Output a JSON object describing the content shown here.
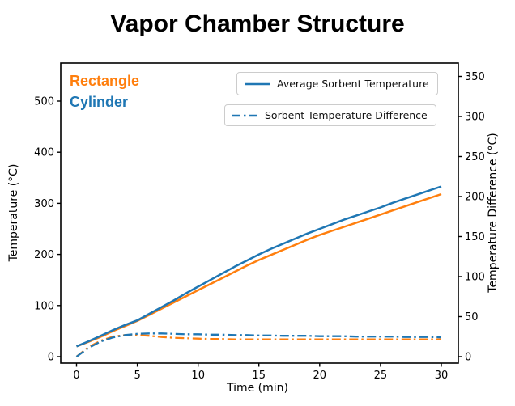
{
  "chart_data": {
    "type": "line",
    "title": "Vapor Chamber Structure",
    "xlabel": "Time (min)",
    "ylabel_left": "Temperature (°C)",
    "ylabel_right": "Temperature Difference (°C)",
    "grid": false,
    "x_ticks": [
      0,
      5,
      10,
      15,
      20,
      25,
      30
    ],
    "y_ticks_left": [
      0,
      100,
      200,
      300,
      400,
      500
    ],
    "y_ticks_right": [
      0,
      50,
      100,
      150,
      200,
      250,
      300,
      350
    ],
    "xlim": [
      -1.3,
      31.4
    ],
    "ylim_left": [
      -12.7,
      574.4
    ],
    "ylim_right": [
      -8.1,
      366.7
    ],
    "colors": {
      "cylinder": "#1f77b4",
      "rectangle": "#ff7f0e"
    },
    "annotations": [
      {
        "text": "Rectangle",
        "color": "#ff7f0e"
      },
      {
        "text": "Cylinder",
        "color": "#1f77b4"
      }
    ],
    "legend": [
      {
        "label": "Average Sorbent Temperature",
        "line_style": "solid",
        "color": "#1f77b4"
      },
      {
        "label": "Sorbent Temperature Difference",
        "line_style": "dashdot",
        "color": "#1f77b4"
      }
    ],
    "x": [
      0,
      1,
      2,
      3,
      4,
      5,
      6,
      7,
      8,
      9,
      10,
      11,
      12,
      13,
      14,
      15,
      16,
      17,
      18,
      19,
      20,
      21,
      22,
      23,
      24,
      25,
      26,
      27,
      28,
      29,
      30
    ],
    "series": [
      {
        "name": "Rectangle Average Sorbent Temperature",
        "axis": "left",
        "style": "solid",
        "color": "#ff7f0e",
        "values": [
          20,
          29,
          39,
          50,
          60,
          70,
          82,
          94,
          106,
          118,
          130,
          142,
          154,
          166,
          178,
          189,
          199,
          209,
          219,
          229,
          238,
          246,
          254,
          262,
          270,
          278,
          286,
          294,
          302,
          310,
          318
        ]
      },
      {
        "name": "Cylinder Average Sorbent Temperature",
        "axis": "left",
        "style": "solid",
        "color": "#1f77b4",
        "values": [
          20,
          30,
          41,
          52,
          62,
          71,
          84,
          97,
          110,
          124,
          137,
          150,
          163,
          176,
          188,
          200,
          211,
          221,
          231,
          241,
          250,
          259,
          268,
          276,
          284,
          292,
          301,
          309,
          317,
          325,
          333
        ]
      },
      {
        "name": "Rectangle Sorbent Temperature Difference",
        "axis": "right",
        "style": "dashdot",
        "color": "#ff7f0e",
        "values": [
          0,
          12,
          20,
          25,
          27,
          27,
          26,
          24.5,
          23.5,
          23,
          22.5,
          22,
          22,
          21.5,
          21.5,
          21.5,
          21.5,
          21.5,
          21.5,
          21.5,
          21.5,
          21.5,
          21.5,
          21.5,
          21.5,
          21.5,
          21.5,
          21.5,
          21.5,
          21.5,
          21.5
        ]
      },
      {
        "name": "Cylinder Sorbent Temperature Difference",
        "axis": "right",
        "style": "dashdot",
        "color": "#1f77b4",
        "values": [
          0,
          11,
          19,
          24,
          27,
          28.5,
          29,
          29,
          28.5,
          28,
          28,
          27.5,
          27.5,
          27,
          27,
          26.5,
          26.5,
          26,
          26,
          26,
          25.5,
          25.5,
          25.5,
          25,
          25,
          25,
          25,
          24.5,
          24.5,
          24.5,
          24
        ]
      }
    ]
  }
}
